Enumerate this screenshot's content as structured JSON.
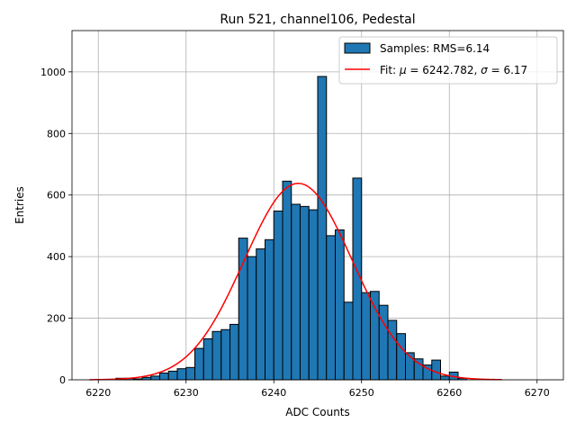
{
  "chart_data": {
    "type": "bar",
    "title": "Run 521, channel106, Pedestal",
    "xlabel": "ADC Counts",
    "ylabel": "Entries",
    "xlim": [
      6217,
      6273
    ],
    "ylim": [
      0,
      1134
    ],
    "grid": true,
    "legend_position": "top-right",
    "x_ticks": [
      6220,
      6230,
      6240,
      6250,
      6260,
      6270
    ],
    "y_ticks": [
      0,
      200,
      400,
      600,
      800,
      1000
    ],
    "histogram": {
      "name": "Samples: RMS=6.14",
      "color": "#1f77b4",
      "edge_color": "#000000",
      "bin_start": 6222,
      "bin_width": 1,
      "counts": [
        5,
        5,
        3,
        8,
        12,
        22,
        28,
        36,
        40,
        102,
        133,
        157,
        163,
        180,
        460,
        400,
        425,
        455,
        548,
        645,
        570,
        563,
        552,
        985,
        468,
        487,
        252,
        655,
        283,
        287,
        242,
        193,
        150,
        88,
        68,
        48,
        64,
        12,
        25,
        5
      ]
    },
    "fit": {
      "name": "Fit: μ = 6242.782, σ = 6.17",
      "name_parts": {
        "prefix": "Fit: ",
        "mu_symbol": "μ",
        "mu_eq": " = 6242.782, ",
        "sigma_symbol": "σ",
        "sigma_eq": " = 6.17"
      },
      "color": "#ff0000",
      "mu": 6242.782,
      "sigma": 6.17,
      "amplitude": 638,
      "x_range": [
        6219,
        6266
      ]
    }
  }
}
